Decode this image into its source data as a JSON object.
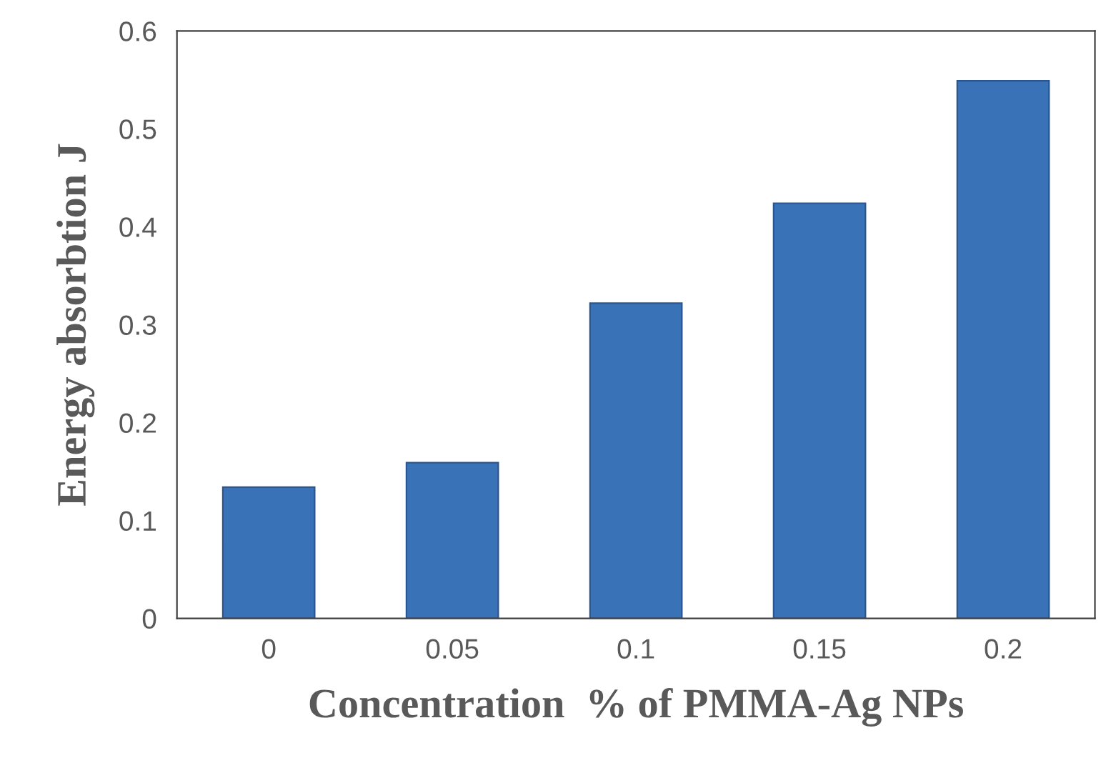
{
  "chart_data": {
    "type": "bar",
    "xlabel": "Concentration  % of PMMA-Ag NPs",
    "ylabel": "Energy absorbtion J",
    "categories": [
      "0",
      "0.05",
      "0.1",
      "0.15",
      "0.2"
    ],
    "values": [
      0.134,
      0.159,
      0.322,
      0.424,
      0.549
    ],
    "color": "#3a72b8",
    "ylim": [
      0,
      0.6
    ],
    "yticks": [
      0,
      0.1,
      0.2,
      0.3,
      0.4,
      0.5,
      0.6
    ],
    "grid": false
  }
}
